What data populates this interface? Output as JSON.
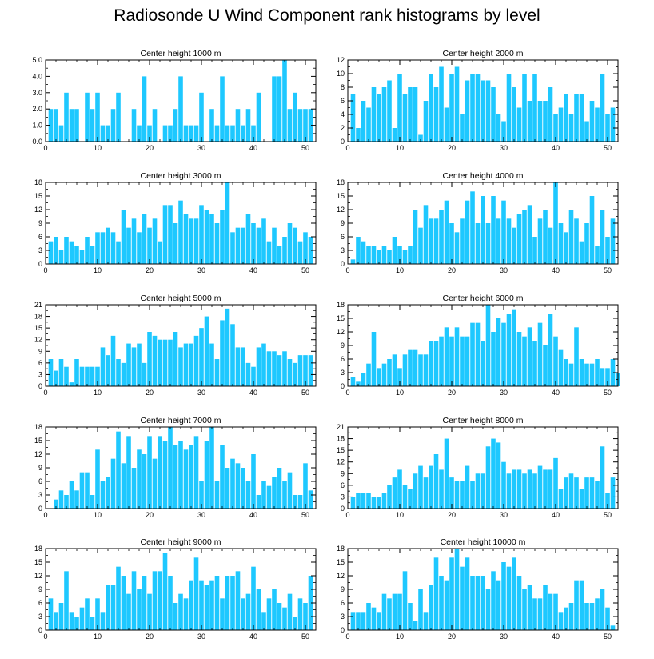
{
  "title": "Radiosonde U Wind Component rank histograms by level",
  "colors": {
    "bar": "#1ec8ff",
    "axis": "#000000",
    "background": "#ffffff"
  },
  "chart_data": [
    {
      "type": "bar",
      "title": "Center height 1000 m",
      "xlim": [
        0,
        52
      ],
      "ylim": [
        0,
        5
      ],
      "xticks": [
        0,
        10,
        20,
        30,
        40,
        50
      ],
      "yticks": [
        0.0,
        1.0,
        2.0,
        3.0,
        4.0,
        5.0
      ],
      "ytick_decimals": 1,
      "values": [
        2,
        2,
        1,
        3,
        2,
        2,
        0,
        3,
        2,
        3,
        1,
        1,
        2,
        3,
        0,
        0,
        2,
        1,
        4,
        1,
        2,
        0,
        1,
        1,
        2,
        4,
        1,
        1,
        1,
        3,
        0,
        2,
        1,
        4,
        1,
        1,
        2,
        1,
        2,
        1,
        3,
        0,
        0,
        4,
        4,
        5,
        2,
        3,
        2,
        2,
        2
      ]
    },
    {
      "type": "bar",
      "title": "Center height 2000 m",
      "xlim": [
        0,
        52
      ],
      "ylim": [
        0,
        12
      ],
      "xticks": [
        0,
        10,
        20,
        30,
        40,
        50
      ],
      "yticks": [
        0,
        2,
        4,
        6,
        8,
        10,
        12
      ],
      "ytick_decimals": 0,
      "values": [
        7,
        2,
        6,
        5,
        8,
        7,
        8,
        9,
        2,
        10,
        7,
        8,
        8,
        1,
        6,
        10,
        8,
        11,
        5,
        10,
        11,
        4,
        9,
        10,
        10,
        9,
        9,
        8,
        4,
        3,
        10,
        8,
        5,
        10,
        6,
        10,
        6,
        6,
        8,
        4,
        5,
        7,
        4,
        7,
        7,
        3,
        6,
        5,
        10,
        4,
        5
      ]
    },
    {
      "type": "bar",
      "title": "Center height 3000 m",
      "xlim": [
        0,
        52
      ],
      "ylim": [
        0,
        18
      ],
      "xticks": [
        0,
        10,
        20,
        30,
        40,
        50
      ],
      "yticks": [
        0,
        3,
        6,
        9,
        12,
        15,
        18
      ],
      "ytick_decimals": 0,
      "values": [
        5,
        6,
        3,
        6,
        5,
        4,
        3,
        6,
        4,
        7,
        7,
        8,
        7,
        5,
        12,
        8,
        10,
        7,
        11,
        8,
        10,
        5,
        13,
        13,
        9,
        14,
        11,
        10,
        10,
        13,
        12,
        11,
        9,
        12,
        18,
        7,
        8,
        8,
        11,
        9,
        8,
        10,
        5,
        8,
        4,
        6,
        9,
        8,
        5,
        7,
        6
      ]
    },
    {
      "type": "bar",
      "title": "Center height 4000 m",
      "xlim": [
        0,
        52
      ],
      "ylim": [
        0,
        18
      ],
      "xticks": [
        0,
        10,
        20,
        30,
        40,
        50
      ],
      "yticks": [
        0,
        3,
        6,
        9,
        12,
        15,
        18
      ],
      "ytick_decimals": 0,
      "values": [
        1,
        6,
        5,
        4,
        4,
        3,
        4,
        3,
        6,
        4,
        3,
        4,
        12,
        8,
        13,
        10,
        10,
        12,
        14,
        9,
        7,
        10,
        14,
        16,
        9,
        15,
        9,
        15,
        10,
        14,
        10,
        8,
        11,
        12,
        13,
        6,
        10,
        12,
        8,
        18,
        9,
        7,
        12,
        10,
        5,
        9,
        15,
        4,
        12,
        6,
        10
      ]
    },
    {
      "type": "bar",
      "title": "Center height 5000 m",
      "xlim": [
        0,
        52
      ],
      "ylim": [
        0,
        21
      ],
      "xticks": [
        0,
        10,
        20,
        30,
        40,
        50
      ],
      "yticks": [
        0,
        3,
        6,
        9,
        12,
        15,
        18,
        21
      ],
      "ytick_decimals": 0,
      "values": [
        7,
        4,
        7,
        5,
        1,
        7,
        5,
        5,
        5,
        5,
        10,
        8,
        13,
        7,
        6,
        11,
        10,
        11,
        6,
        14,
        13,
        12,
        12,
        12,
        14,
        10,
        11,
        11,
        13,
        15,
        18,
        11,
        7,
        17,
        20,
        16,
        10,
        10,
        6,
        5,
        10,
        11,
        9,
        9,
        8,
        9,
        7,
        6,
        8,
        8,
        8
      ]
    },
    {
      "type": "bar",
      "title": "Center height 6000 m",
      "xlim": [
        0,
        52
      ],
      "ylim": [
        0,
        18
      ],
      "xticks": [
        0,
        10,
        20,
        30,
        40,
        50
      ],
      "yticks": [
        0,
        3,
        6,
        9,
        12,
        15,
        18
      ],
      "ytick_decimals": 0,
      "values": [
        2,
        1,
        3,
        5,
        12,
        4,
        5,
        6,
        7,
        4,
        7,
        8,
        8,
        7,
        7,
        10,
        10,
        11,
        13,
        11,
        13,
        11,
        11,
        14,
        14,
        10,
        18,
        12,
        15,
        14,
        16,
        17,
        12,
        11,
        13,
        10,
        14,
        9,
        16,
        11,
        8,
        6,
        5,
        13,
        6,
        5,
        5,
        6,
        4,
        4,
        6,
        3
      ]
    },
    {
      "type": "bar",
      "title": "Center height 7000 m",
      "xlim": [
        0,
        52
      ],
      "ylim": [
        0,
        18
      ],
      "xticks": [
        0,
        10,
        20,
        30,
        40,
        50
      ],
      "yticks": [
        0,
        3,
        6,
        9,
        12,
        15,
        18
      ],
      "ytick_decimals": 0,
      "values": [
        0,
        2,
        4,
        3,
        6,
        4,
        8,
        8,
        3,
        13,
        6,
        7,
        11,
        17,
        10,
        16,
        9,
        13,
        12,
        16,
        11,
        16,
        15,
        18,
        14,
        15,
        13,
        14,
        16,
        6,
        15,
        18,
        6,
        14,
        9,
        11,
        10,
        9,
        6,
        12,
        3,
        6,
        5,
        7,
        9,
        6,
        8,
        3,
        3,
        10,
        4
      ]
    },
    {
      "type": "bar",
      "title": "Center height 8000 m",
      "xlim": [
        0,
        52
      ],
      "ylim": [
        0,
        21
      ],
      "xticks": [
        0,
        10,
        20,
        30,
        40,
        50
      ],
      "yticks": [
        0,
        3,
        6,
        9,
        12,
        15,
        18,
        21
      ],
      "ytick_decimals": 0,
      "values": [
        3,
        4,
        4,
        4,
        3,
        3,
        4,
        6,
        8,
        10,
        6,
        5,
        9,
        11,
        8,
        11,
        14,
        10,
        18,
        8,
        7,
        7,
        11,
        7,
        9,
        9,
        16,
        18,
        17,
        12,
        9,
        10,
        10,
        9,
        10,
        9,
        11,
        10,
        10,
        13,
        5,
        8,
        9,
        8,
        5,
        8,
        8,
        7,
        16,
        4,
        8
      ]
    },
    {
      "type": "bar",
      "title": "Center height 9000 m",
      "xlim": [
        0,
        52
      ],
      "ylim": [
        0,
        18
      ],
      "xticks": [
        0,
        10,
        20,
        30,
        40,
        50
      ],
      "yticks": [
        0,
        3,
        6,
        9,
        12,
        15,
        18
      ],
      "ytick_decimals": 0,
      "values": [
        7,
        4,
        6,
        13,
        4,
        3,
        5,
        7,
        3,
        7,
        4,
        10,
        10,
        14,
        12,
        8,
        13,
        9,
        12,
        8,
        13,
        13,
        17,
        12,
        6,
        8,
        7,
        11,
        16,
        11,
        10,
        11,
        12,
        7,
        12,
        12,
        13,
        7,
        8,
        14,
        9,
        4,
        7,
        9,
        6,
        5,
        8,
        3,
        7,
        6,
        12
      ]
    },
    {
      "type": "bar",
      "title": "Center height 10000 m",
      "xlim": [
        0,
        52
      ],
      "ylim": [
        0,
        18
      ],
      "xticks": [
        0,
        10,
        20,
        30,
        40,
        50
      ],
      "yticks": [
        0,
        3,
        6,
        9,
        12,
        15,
        18
      ],
      "ytick_decimals": 0,
      "values": [
        4,
        4,
        4,
        6,
        5,
        4,
        8,
        7,
        8,
        8,
        13,
        6,
        2,
        9,
        4,
        10,
        16,
        12,
        11,
        16,
        18,
        14,
        16,
        12,
        12,
        12,
        9,
        13,
        11,
        15,
        14,
        16,
        12,
        9,
        10,
        7,
        7,
        10,
        8,
        8,
        4,
        5,
        6,
        11,
        11,
        6,
        6,
        7,
        9,
        5,
        1
      ]
    }
  ]
}
